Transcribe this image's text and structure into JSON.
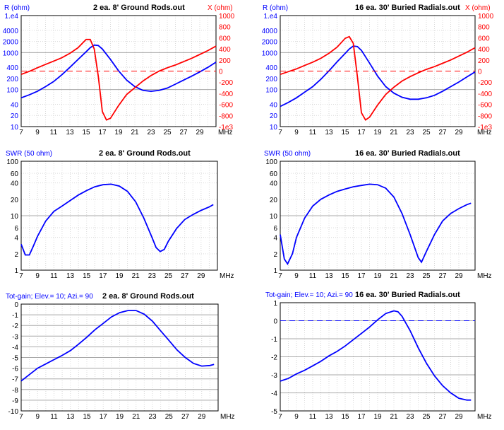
{
  "colors": {
    "blue": "#0000ff",
    "red": "#ff0000",
    "axis_text": "#000000"
  },
  "chart_data": [
    {
      "type": "line",
      "title": "2 ea. 8' Ground Rods.out",
      "xlabel": "MHz",
      "xlim": [
        7,
        31
      ],
      "xticks": [
        "7",
        "9",
        "11",
        "13",
        "15",
        "17",
        "19",
        "21",
        "23",
        "25",
        "27",
        "29"
      ],
      "left_axis": {
        "label": "R (ohm)",
        "scale": "log",
        "ylim": [
          10,
          10000
        ],
        "ticks": [
          {
            "v": 10000,
            "t": "1.e4"
          },
          {
            "v": 4000,
            "t": "4000"
          },
          {
            "v": 2000,
            "t": "2000"
          },
          {
            "v": 1000,
            "t": "1000"
          },
          {
            "v": 400,
            "t": "400"
          },
          {
            "v": 200,
            "t": "200"
          },
          {
            "v": 100,
            "t": "100"
          },
          {
            "v": 40,
            "t": "40"
          },
          {
            "v": 20,
            "t": "20"
          },
          {
            "v": 10,
            "t": "10"
          }
        ]
      },
      "right_axis": {
        "label": "X (ohm)",
        "scale": "linear",
        "ylim": [
          -1000,
          1000
        ],
        "ticks": [
          {
            "v": 1000,
            "t": "1000"
          },
          {
            "v": 800,
            "t": "800"
          },
          {
            "v": 600,
            "t": "600"
          },
          {
            "v": 400,
            "t": "400"
          },
          {
            "v": 200,
            "t": "200"
          },
          {
            "v": 0,
            "t": "0"
          },
          {
            "v": -200,
            "t": "-200"
          },
          {
            "v": -400,
            "t": "-400"
          },
          {
            "v": -600,
            "t": "-600"
          },
          {
            "v": -800,
            "t": "-800"
          },
          {
            "v": -1000,
            "t": "-1e3"
          }
        ]
      },
      "series": [
        {
          "name": "R (ohm)",
          "axis": "left",
          "color": "#0000ff",
          "x": [
            7,
            8,
            9,
            10,
            11,
            12,
            13,
            14,
            15,
            15.5,
            16,
            16.5,
            17,
            18,
            19,
            20,
            21,
            22,
            23,
            24,
            25,
            26,
            27,
            28,
            29,
            30,
            31
          ],
          "y": [
            60,
            72,
            90,
            120,
            165,
            250,
            400,
            650,
            1050,
            1350,
            1600,
            1550,
            1250,
            650,
            320,
            180,
            120,
            95,
            90,
            95,
            110,
            140,
            180,
            230,
            300,
            400,
            550
          ]
        },
        {
          "name": "X (ohm)",
          "axis": "right",
          "color": "#ff0000",
          "x": [
            7,
            8,
            9,
            10,
            11,
            12,
            13,
            14,
            15,
            15.5,
            16,
            16.5,
            17,
            17.5,
            18,
            19,
            20,
            21,
            22,
            23,
            24,
            25,
            26,
            27,
            28,
            29,
            30,
            31
          ],
          "y": [
            -60,
            -5,
            60,
            120,
            180,
            240,
            320,
            420,
            570,
            570,
            400,
            -100,
            -730,
            -880,
            -850,
            -620,
            -420,
            -300,
            -180,
            -80,
            0,
            60,
            110,
            170,
            230,
            300,
            370,
            450
          ]
        },
        {
          "name": "X = 0",
          "axis": "right",
          "color": "#ff0000",
          "dashed": true,
          "x": [
            7,
            31
          ],
          "y": [
            0,
            0
          ]
        }
      ]
    },
    {
      "type": "line",
      "title": "16 ea. 30' Buried Radials.out",
      "xlabel": "MHz",
      "xlim": [
        7,
        31
      ],
      "xticks": [
        "7",
        "9",
        "11",
        "13",
        "15",
        "17",
        "19",
        "21",
        "23",
        "25",
        "27",
        "29"
      ],
      "left_axis": {
        "label": "R (ohm)",
        "scale": "log",
        "ylim": [
          10,
          10000
        ],
        "ticks": [
          {
            "v": 10000,
            "t": "1.e4"
          },
          {
            "v": 4000,
            "t": "4000"
          },
          {
            "v": 2000,
            "t": "2000"
          },
          {
            "v": 1000,
            "t": "1000"
          },
          {
            "v": 400,
            "t": "400"
          },
          {
            "v": 200,
            "t": "200"
          },
          {
            "v": 100,
            "t": "100"
          },
          {
            "v": 40,
            "t": "40"
          },
          {
            "v": 20,
            "t": "20"
          },
          {
            "v": 10,
            "t": "10"
          }
        ]
      },
      "right_axis": {
        "label": "X (ohm)",
        "scale": "linear",
        "ylim": [
          -1000,
          1000
        ],
        "ticks": [
          {
            "v": 1000,
            "t": "1000"
          },
          {
            "v": 800,
            "t": "800"
          },
          {
            "v": 600,
            "t": "600"
          },
          {
            "v": 400,
            "t": "400"
          },
          {
            "v": 200,
            "t": "200"
          },
          {
            "v": 0,
            "t": "0"
          },
          {
            "v": -200,
            "t": "-200"
          },
          {
            "v": -400,
            "t": "-400"
          },
          {
            "v": -600,
            "t": "-600"
          },
          {
            "v": -800,
            "t": "-800"
          },
          {
            "v": -1000,
            "t": "-1e3"
          }
        ]
      },
      "series": [
        {
          "name": "R (ohm)",
          "axis": "left",
          "color": "#0000ff",
          "x": [
            7,
            8,
            9,
            10,
            11,
            12,
            13,
            14,
            15,
            15.5,
            16,
            16.5,
            17,
            18,
            19,
            20,
            21,
            22,
            23,
            24,
            25,
            26,
            27,
            28,
            29,
            30,
            31
          ],
          "y": [
            35,
            45,
            60,
            85,
            120,
            190,
            320,
            560,
            950,
            1250,
            1500,
            1450,
            1150,
            520,
            230,
            120,
            80,
            62,
            55,
            55,
            60,
            70,
            90,
            120,
            160,
            220,
            300
          ]
        },
        {
          "name": "X (ohm)",
          "axis": "right",
          "color": "#ff0000",
          "x": [
            7,
            8,
            9,
            10,
            11,
            12,
            13,
            14,
            15,
            15.5,
            16,
            16.5,
            17,
            17.5,
            18,
            19,
            20,
            21,
            22,
            23,
            24,
            25,
            26,
            27,
            28,
            29,
            30,
            31
          ],
          "y": [
            -60,
            -10,
            40,
            100,
            160,
            230,
            320,
            430,
            590,
            620,
            500,
            -100,
            -750,
            -880,
            -830,
            -610,
            -420,
            -290,
            -180,
            -100,
            -30,
            30,
            80,
            140,
            200,
            270,
            340,
            420
          ]
        },
        {
          "name": "X = 0",
          "axis": "right",
          "color": "#ff0000",
          "dashed": true,
          "x": [
            7,
            31
          ],
          "y": [
            0,
            0
          ]
        }
      ]
    },
    {
      "type": "line",
      "title": "2 ea. 8' Ground Rods.out",
      "xlabel": "MHz",
      "xlim": [
        7,
        31
      ],
      "xticks": [
        "7",
        "9",
        "11",
        "13",
        "15",
        "17",
        "19",
        "21",
        "23",
        "25",
        "27",
        "29"
      ],
      "left_axis": {
        "label": "SWR (50 ohm)",
        "scale": "log",
        "ylim": [
          1,
          100
        ],
        "ticks": [
          {
            "v": 100,
            "t": "100"
          },
          {
            "v": 60,
            "t": "60"
          },
          {
            "v": 40,
            "t": "40"
          },
          {
            "v": 20,
            "t": "20"
          },
          {
            "v": 10,
            "t": "10"
          },
          {
            "v": 6,
            "t": "6"
          },
          {
            "v": 4,
            "t": "4"
          },
          {
            "v": 2,
            "t": "2"
          },
          {
            "v": 1,
            "t": "1"
          }
        ]
      },
      "series": [
        {
          "name": "SWR (50 ohm)",
          "axis": "left",
          "color": "#0000ff",
          "x": [
            7,
            7.5,
            8,
            8.5,
            9,
            10,
            11,
            12,
            13,
            14,
            15,
            16,
            17,
            18,
            19,
            20,
            21,
            22,
            23,
            23.5,
            24,
            24.5,
            25,
            26,
            27,
            28,
            29,
            30,
            30.5
          ],
          "y": [
            3,
            1.9,
            1.9,
            2.8,
            4.2,
            8,
            12,
            15,
            19,
            24,
            29,
            34,
            37,
            38,
            35,
            28,
            18,
            9,
            4,
            2.6,
            2.2,
            2.4,
            3.4,
            5.8,
            8.5,
            10.5,
            12.5,
            14.5,
            16
          ]
        }
      ]
    },
    {
      "type": "line",
      "title": "16 ea. 30' Buried Radials.out",
      "xlabel": "MHz",
      "xlim": [
        7,
        31
      ],
      "xticks": [
        "7",
        "9",
        "11",
        "13",
        "15",
        "17",
        "19",
        "21",
        "23",
        "25",
        "27",
        "29"
      ],
      "left_axis": {
        "label": "SWR (50 ohm)",
        "scale": "log",
        "ylim": [
          1,
          100
        ],
        "ticks": [
          {
            "v": 100,
            "t": "100"
          },
          {
            "v": 60,
            "t": "60"
          },
          {
            "v": 40,
            "t": "40"
          },
          {
            "v": 20,
            "t": "20"
          },
          {
            "v": 10,
            "t": "10"
          },
          {
            "v": 6,
            "t": "6"
          },
          {
            "v": 4,
            "t": "4"
          },
          {
            "v": 2,
            "t": "2"
          },
          {
            "v": 1,
            "t": "1"
          }
        ]
      },
      "series": [
        {
          "name": "SWR (50 ohm)",
          "axis": "left",
          "color": "#0000ff",
          "x": [
            7,
            7.5,
            7.9,
            8.5,
            9,
            10,
            11,
            12,
            13,
            14,
            15,
            16,
            17,
            18,
            19,
            20,
            21,
            22,
            23,
            24,
            24.4,
            25,
            26,
            27,
            28,
            29,
            30,
            30.5
          ],
          "y": [
            4.5,
            1.6,
            1.3,
            2,
            4,
            9,
            15,
            20,
            24,
            28,
            31,
            34,
            36,
            38,
            37,
            32,
            22,
            11,
            4.5,
            1.7,
            1.4,
            2.2,
            4.5,
            8,
            11,
            13.5,
            16,
            17
          ]
        }
      ]
    },
    {
      "type": "line",
      "title": "2 ea. 8' Ground Rods.out",
      "xlabel": "MHz",
      "xlim": [
        7,
        31
      ],
      "xticks": [
        "7",
        "9",
        "11",
        "13",
        "15",
        "17",
        "19",
        "21",
        "23",
        "25",
        "27",
        "29"
      ],
      "left_axis": {
        "label": "Tot-gain; Elev.= 10; Azi.= 90",
        "scale": "linear",
        "ylim": [
          -10,
          0
        ],
        "ticks": [
          {
            "v": 0,
            "t": "0"
          },
          {
            "v": -1,
            "t": "-1"
          },
          {
            "v": -2,
            "t": "-2"
          },
          {
            "v": -3,
            "t": "-3"
          },
          {
            "v": -4,
            "t": "-4"
          },
          {
            "v": -5,
            "t": "-5"
          },
          {
            "v": -6,
            "t": "-6"
          },
          {
            "v": -7,
            "t": "-7"
          },
          {
            "v": -8,
            "t": "-8"
          },
          {
            "v": -9,
            "t": "-9"
          },
          {
            "v": -10,
            "t": "-10"
          }
        ]
      },
      "series": [
        {
          "name": "Tot-gain",
          "axis": "left",
          "color": "#0000ff",
          "x": [
            7,
            8,
            9,
            10,
            11,
            12,
            13,
            14,
            15,
            16,
            17,
            18,
            19,
            20,
            21,
            22,
            23,
            24,
            25,
            26,
            27,
            28,
            29,
            30,
            30.5
          ],
          "y": [
            -7.2,
            -6.6,
            -6.0,
            -5.6,
            -5.2,
            -4.8,
            -4.35,
            -3.75,
            -3.1,
            -2.4,
            -1.8,
            -1.2,
            -0.8,
            -0.6,
            -0.6,
            -0.95,
            -1.6,
            -2.5,
            -3.4,
            -4.3,
            -5.0,
            -5.55,
            -5.8,
            -5.75,
            -5.65
          ]
        }
      ]
    },
    {
      "type": "line",
      "title": "16 ea. 30' Buried Radials.out",
      "xlabel": "MHz",
      "xlim": [
        7,
        31
      ],
      "xticks": [
        "7",
        "9",
        "11",
        "13",
        "15",
        "17",
        "19",
        "21",
        "23",
        "25",
        "27",
        "29"
      ],
      "left_axis": {
        "label": "Tot-gain; Elev.= 10; Azi.= 90",
        "scale": "linear",
        "ylim": [
          -5,
          1
        ],
        "ticks": [
          {
            "v": 1,
            "t": "1"
          },
          {
            "v": 0,
            "t": "0"
          },
          {
            "v": -1,
            "t": "-1"
          },
          {
            "v": -2,
            "t": "-2"
          },
          {
            "v": -3,
            "t": "-3"
          },
          {
            "v": -4,
            "t": "-4"
          },
          {
            "v": -5,
            "t": "-5"
          }
        ]
      },
      "series": [
        {
          "name": "Tot-gain",
          "axis": "left",
          "color": "#0000ff",
          "x": [
            7,
            8,
            9,
            10,
            11,
            12,
            13,
            14,
            15,
            16,
            17,
            18,
            19,
            20,
            21,
            21.5,
            22,
            23,
            24,
            25,
            26,
            27,
            28,
            29,
            30,
            30.5
          ],
          "y": [
            -3.35,
            -3.2,
            -2.95,
            -2.75,
            -2.5,
            -2.25,
            -1.95,
            -1.7,
            -1.4,
            -1.05,
            -0.7,
            -0.35,
            0.05,
            0.4,
            0.55,
            0.5,
            0.25,
            -0.55,
            -1.5,
            -2.35,
            -3.05,
            -3.6,
            -4.0,
            -4.3,
            -4.4,
            -4.4
          ]
        },
        {
          "name": "0 dB",
          "axis": "left",
          "color": "#0000ff",
          "dashed": true,
          "x": [
            7,
            31
          ],
          "y": [
            0,
            0
          ]
        }
      ]
    }
  ]
}
